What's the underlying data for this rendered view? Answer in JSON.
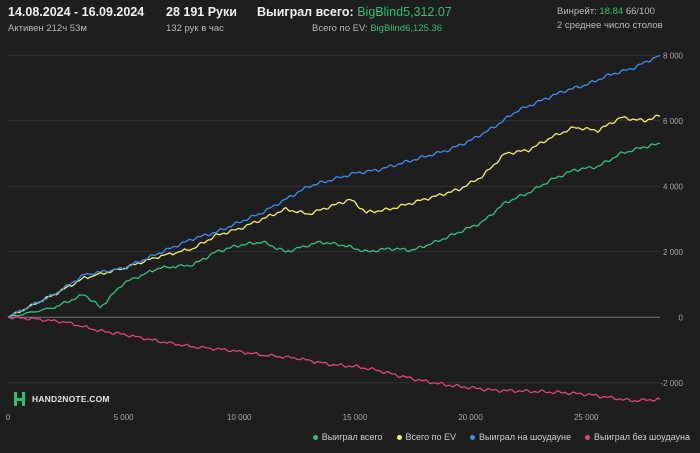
{
  "header": {
    "date_range": "14.08.2024 - 16.09.2024",
    "active": "Активен 212ч 53м",
    "hands": "28 191 Руки",
    "hands_per_hour": "132 рук в час",
    "won_label": "Выиграл всего:",
    "won_value": "BigBlind5,312.07",
    "ev_label": "Всего по EV:",
    "ev_value": "BigBlind6,125.36",
    "winrate_label": "Винрейт:",
    "winrate_value": "18.84",
    "winrate_suffix": "66/100",
    "avg_tables": "2 среднее число столов"
  },
  "logo": {
    "text": "HAND2NOTE.COM"
  },
  "colors": {
    "won": "#2ec27e",
    "ev": "#f5f058",
    "showdown": "#3b8ff0",
    "nonshowdown": "#e0457b",
    "background": "#1e1e1e"
  },
  "chart_data": {
    "type": "line",
    "xlim": [
      0,
      28191
    ],
    "ylim": [
      -2800,
      8100
    ],
    "x_ticks": [
      0,
      5000,
      10000,
      15000,
      20000,
      25000
    ],
    "x_tick_labels": [
      "0",
      "5 000",
      "10 000",
      "15 000",
      "20 000",
      "25 000"
    ],
    "y_ticks": [
      8000,
      6000,
      4000,
      2000,
      0,
      -2000
    ],
    "y_tick_labels": [
      "8 000",
      "6 000",
      "4 000",
      "2 000",
      "0",
      "-2 000"
    ],
    "grid": true,
    "legend_position": "bottom-right",
    "series": [
      {
        "name": "Выиграл всего",
        "color": "#2ec27e",
        "x": [
          0,
          2000,
          3300,
          4000,
          5000,
          6500,
          8000,
          9000,
          10000,
          11000,
          12000,
          13500,
          14500,
          15500,
          16500,
          17500,
          18500,
          19500,
          20500,
          21500,
          22500,
          23500,
          24500,
          25500,
          26500,
          27500,
          28191
        ],
        "y": [
          0,
          300,
          700,
          300,
          1050,
          1500,
          1600,
          2000,
          2200,
          2300,
          2000,
          2300,
          2200,
          2000,
          2100,
          2050,
          2300,
          2600,
          2900,
          3500,
          3800,
          4200,
          4500,
          4600,
          5000,
          5200,
          5300
        ]
      },
      {
        "name": "Всего по EV",
        "color": "#f5f058",
        "x": [
          0,
          2000,
          3300,
          5000,
          6500,
          8000,
          9000,
          10000,
          11000,
          12000,
          13000,
          14000,
          14800,
          15500,
          16500,
          17500,
          18500,
          19500,
          20500,
          21500,
          22500,
          23500,
          24500,
          25500,
          26500,
          27500,
          28191
        ],
        "y": [
          0,
          700,
          1200,
          1500,
          1850,
          2100,
          2500,
          2700,
          3000,
          3300,
          3150,
          3400,
          3600,
          3200,
          3300,
          3500,
          3700,
          3900,
          4300,
          5000,
          5100,
          5500,
          5800,
          5700,
          6100,
          6000,
          6150
        ]
      },
      {
        "name": "Выиграл на шоудауне",
        "color": "#3b8ff0",
        "x": [
          0,
          2000,
          3300,
          5000,
          6000,
          7000,
          8000,
          9000,
          10000,
          11000,
          12000,
          13000,
          14000,
          15000,
          16000,
          17000,
          18000,
          19000,
          20000,
          21000,
          22000,
          23000,
          24000,
          25000,
          26000,
          27000,
          28191
        ],
        "y": [
          0,
          700,
          1300,
          1500,
          1800,
          2100,
          2400,
          2600,
          2900,
          3200,
          3600,
          4000,
          4200,
          4400,
          4500,
          4700,
          4900,
          5100,
          5400,
          5800,
          6300,
          6600,
          6900,
          7100,
          7400,
          7600,
          8000
        ]
      },
      {
        "name": "Выиграл без шоудауна",
        "color": "#e0457b",
        "x": [
          0,
          1000,
          2500,
          4000,
          5000,
          6500,
          8000,
          9500,
          11000,
          12500,
          14000,
          15000,
          16000,
          17000,
          18000,
          19000,
          20000,
          21000,
          22000,
          23000,
          24000,
          25000,
          26000,
          27000,
          28191
        ],
        "y": [
          0,
          -40,
          -150,
          -420,
          -520,
          -730,
          -900,
          -1000,
          -1150,
          -1250,
          -1450,
          -1500,
          -1620,
          -1800,
          -1950,
          -2070,
          -2150,
          -2230,
          -2250,
          -2270,
          -2300,
          -2350,
          -2450,
          -2550,
          -2500
        ]
      }
    ]
  }
}
